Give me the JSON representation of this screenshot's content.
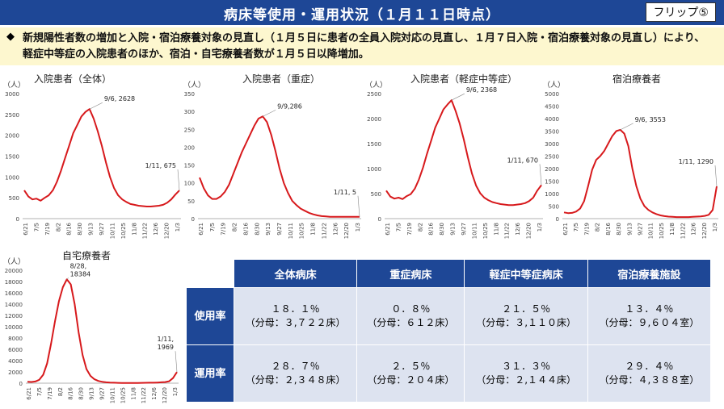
{
  "header": {
    "title": "病床等使用・運用状況（１月１１日時点）",
    "flip": "フリップ⑤"
  },
  "summary": {
    "bullet": "◆",
    "text": "新規陽性者数の増加と入院・宿泊療養対象の見直し（１月５日に患者の全員入院対応の見直し、１月７日入院・宿泊療養対象の見直し）により、軽症中等症の入院患者のほか、宿泊・自宅療養者数が１月５日以降増加。"
  },
  "unit_label": "（人）",
  "chart_data": [
    {
      "type": "line",
      "title": "入院患者（全体）",
      "yticks": [
        "0",
        "500",
        "1000",
        "1500",
        "2000",
        "2500",
        "3000"
      ],
      "ylim": [
        0,
        3000
      ],
      "x_labels": [
        "6/21",
        "7/5",
        "7/19",
        "8/2",
        "8/16",
        "8/30",
        "9/13",
        "9/27",
        "10/11",
        "10/25",
        "11/8",
        "11/22",
        "12/6",
        "12/20",
        "1/3"
      ],
      "values": [
        680,
        530,
        460,
        480,
        430,
        500,
        560,
        680,
        880,
        1150,
        1450,
        1750,
        2050,
        2250,
        2450,
        2560,
        2628,
        2400,
        2100,
        1750,
        1350,
        1000,
        730,
        560,
        460,
        400,
        350,
        330,
        310,
        300,
        290,
        290,
        300,
        310,
        330,
        380,
        460,
        575,
        675
      ],
      "annotations": [
        {
          "index": 16,
          "text": "9/6, 2628"
        },
        {
          "index": 38,
          "text": "1/11, 675"
        }
      ]
    },
    {
      "type": "line",
      "title": "入院患者（重症）",
      "yticks": [
        "0",
        "50",
        "100",
        "150",
        "200",
        "250",
        "300",
        "350"
      ],
      "ylim": [
        0,
        350
      ],
      "x_labels": [
        "6/21",
        "7/5",
        "7/19",
        "8/2",
        "8/16",
        "8/30",
        "9/13",
        "9/27",
        "10/11",
        "10/25",
        "11/8",
        "11/22",
        "12/6",
        "12/20",
        "1/3"
      ],
      "values": [
        115,
        85,
        65,
        55,
        55,
        62,
        75,
        95,
        125,
        155,
        185,
        210,
        235,
        260,
        280,
        286,
        270,
        235,
        190,
        140,
        100,
        72,
        50,
        38,
        28,
        22,
        16,
        12,
        9,
        7,
        6,
        5,
        5,
        5,
        5,
        5,
        5,
        5,
        5
      ],
      "annotations": [
        {
          "index": 15,
          "text": "9/9,286"
        },
        {
          "index": 38,
          "text": "1/11, 5"
        }
      ]
    },
    {
      "type": "line",
      "title": "入院患者（軽症中等症）",
      "yticks": [
        "0",
        "500",
        "1000",
        "1500",
        "2000",
        "2500"
      ],
      "ylim": [
        0,
        2500
      ],
      "x_labels": [
        "6/21",
        "7/5",
        "7/19",
        "8/2",
        "8/16",
        "8/30",
        "9/13",
        "9/27",
        "10/11",
        "10/25",
        "11/8",
        "11/22",
        "12/6",
        "12/20",
        "1/3"
      ],
      "values": [
        560,
        440,
        400,
        420,
        390,
        450,
        490,
        600,
        780,
        1020,
        1300,
        1560,
        1820,
        2000,
        2180,
        2280,
        2368,
        2150,
        1900,
        1580,
        1220,
        900,
        660,
        510,
        420,
        370,
        330,
        310,
        290,
        280,
        270,
        270,
        280,
        290,
        310,
        350,
        420,
        560,
        670
      ],
      "annotations": [
        {
          "index": 16,
          "text": "9/6, 2368"
        },
        {
          "index": 38,
          "text": "1/11, 670"
        }
      ]
    },
    {
      "type": "line",
      "title": "宿泊療養者",
      "yticks": [
        "0",
        "500",
        "1000",
        "1500",
        "2000",
        "2500",
        "3000",
        "3500",
        "4000",
        "4500",
        "5000"
      ],
      "ylim": [
        0,
        5000
      ],
      "x_labels": [
        "6/21",
        "7/5",
        "7/19",
        "8/2",
        "8/16",
        "8/30",
        "9/13",
        "9/27",
        "10/11",
        "10/25",
        "11/8",
        "11/22",
        "12/6",
        "12/20",
        "1/3"
      ],
      "values": [
        250,
        220,
        230,
        280,
        400,
        700,
        1300,
        1950,
        2350,
        2500,
        2700,
        3000,
        3300,
        3500,
        3553,
        3400,
        2900,
        2000,
        1300,
        800,
        500,
        350,
        250,
        180,
        130,
        100,
        80,
        70,
        60,
        60,
        60,
        60,
        70,
        80,
        90,
        110,
        150,
        350,
        1290
      ],
      "annotations": [
        {
          "index": 14,
          "text": "9/6, 3553"
        },
        {
          "index": 38,
          "text": "1/11, 1290"
        }
      ]
    },
    {
      "type": "line",
      "title": "自宅療養者",
      "yticks": [
        "0",
        "2000",
        "4000",
        "6000",
        "8000",
        "10000",
        "12000",
        "14000",
        "16000",
        "18000",
        "20000"
      ],
      "ylim": [
        0,
        20000
      ],
      "x_labels": [
        "6/21",
        "7/5",
        "7/19",
        "8/2",
        "8/16",
        "8/30",
        "9/13",
        "9/27",
        "10/11",
        "10/25",
        "11/8",
        "11/22",
        "12/6",
        "12/20",
        "1/3"
      ],
      "values": [
        250,
        220,
        300,
        600,
        1500,
        3500,
        7000,
        11000,
        14500,
        17000,
        18384,
        17500,
        14000,
        9000,
        5000,
        2500,
        1300,
        700,
        400,
        250,
        150,
        100,
        80,
        60,
        50,
        50,
        50,
        50,
        50,
        60,
        70,
        80,
        90,
        110,
        150,
        200,
        350,
        900,
        1969
      ],
      "annotations": [
        {
          "index": 10,
          "text": "8/28,\n18384"
        },
        {
          "index": 38,
          "text": "1/11,\n1969"
        }
      ]
    }
  ],
  "table": {
    "headers": [
      "",
      "全体病床",
      "重症病床",
      "軽症中等症病床",
      "宿泊療養施設"
    ],
    "rows": [
      {
        "label": "使用率",
        "cells": [
          {
            "rate": "１８．１％",
            "denom": "（分母：３,７２２床）"
          },
          {
            "rate": "０．８％",
            "denom": "（分母：６１２床）"
          },
          {
            "rate": "２１．５％",
            "denom": "（分母：３,１１０床）"
          },
          {
            "rate": "１３．４％",
            "denom": "（分母：９,６０４室）"
          }
        ]
      },
      {
        "label": "運用率",
        "cells": [
          {
            "rate": "２８．７％",
            "denom": "（分母：２,３４８床）"
          },
          {
            "rate": "２．５％",
            "denom": "（分母：２０４床）"
          },
          {
            "rate": "３１．３％",
            "denom": "（分母：２,１４４床）"
          },
          {
            "rate": "２９．４％",
            "denom": "（分母：４,３８８室）"
          }
        ]
      }
    ]
  },
  "colors": {
    "header_bg": "#1e4796",
    "summary_bg": "#fdf7cf",
    "line": "#d7191c",
    "cell_bg": "#dde3f0"
  }
}
